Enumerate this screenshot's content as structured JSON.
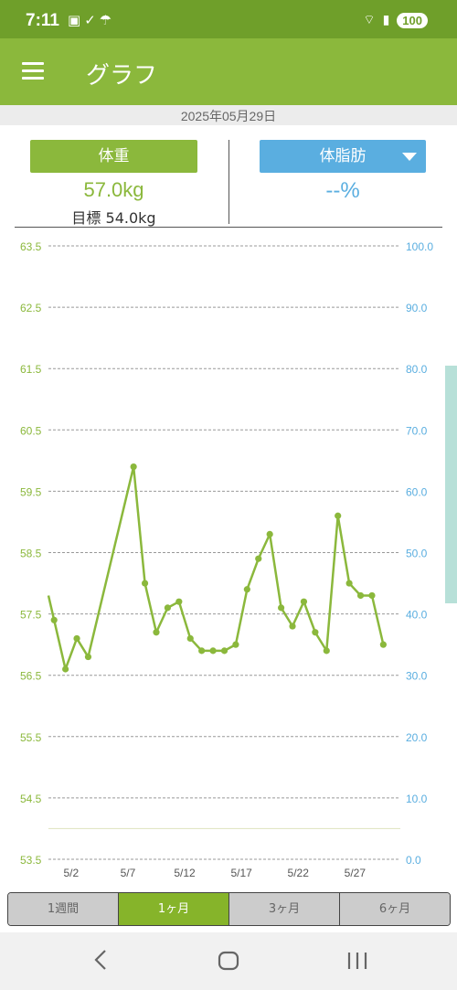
{
  "status_bar": {
    "time": "7:11",
    "icons": [
      "screenshot-icon",
      "alarm-check-icon",
      "weather-icon"
    ],
    "battery": "100"
  },
  "app_bar": {
    "title": "グラフ"
  },
  "date": "2025年05月29日",
  "summary": {
    "weight_button": "体重",
    "weight_value": "57.0kg",
    "target": "目標 54.0kg",
    "fat_button": "体脂肪",
    "fat_value": "--%"
  },
  "colors": {
    "primary": "#8bb83c",
    "status": "#6f9f2a",
    "fat": "#5aaee0"
  },
  "chart_data": {
    "type": "line",
    "x_tick_labels": [
      "5/2",
      "5/7",
      "5/12",
      "5/17",
      "5/22",
      "5/27"
    ],
    "x_tick_days": [
      2,
      7,
      12,
      17,
      22,
      27
    ],
    "x_range_days": [
      0,
      31
    ],
    "left_ticks": [
      "63.5",
      "62.5",
      "61.5",
      "60.5",
      "59.5",
      "58.5",
      "57.5",
      "56.5",
      "55.5",
      "54.5",
      "53.5"
    ],
    "right_ticks": [
      "100.0",
      "90.0",
      "80.0",
      "70.0",
      "60.0",
      "50.0",
      "40.0",
      "30.0",
      "20.0",
      "10.0",
      "0.0"
    ],
    "ylim_left": [
      53.5,
      63.5
    ],
    "ylim_right": [
      0,
      100
    ],
    "target_line": 54.0,
    "series": [
      {
        "values": [
          [
            0,
            57.8
          ],
          [
            0.5,
            57.4
          ],
          [
            1.5,
            56.6
          ],
          [
            2.5,
            57.1
          ],
          [
            3.5,
            56.8
          ],
          [
            7.5,
            59.9
          ],
          [
            8.5,
            58.0
          ],
          [
            9.5,
            57.2
          ],
          [
            10.5,
            57.6
          ],
          [
            11.5,
            57.7
          ],
          [
            12.5,
            57.1
          ],
          [
            13.5,
            56.9
          ],
          [
            14.5,
            56.9
          ],
          [
            15.5,
            56.9
          ],
          [
            16.5,
            57.0
          ],
          [
            17.5,
            57.9
          ],
          [
            18.5,
            58.4
          ],
          [
            19.5,
            58.8
          ],
          [
            20.5,
            57.6
          ],
          [
            21.5,
            57.3
          ],
          [
            22.5,
            57.7
          ],
          [
            23.5,
            57.2
          ],
          [
            24.5,
            56.9
          ],
          [
            25.5,
            59.1
          ],
          [
            26.5,
            58.0
          ],
          [
            27.5,
            57.8
          ],
          [
            28.5,
            57.8
          ],
          [
            29.5,
            57.0
          ]
        ]
      }
    ],
    "grid": true
  },
  "period_tabs": [
    {
      "label": "1週間",
      "active": false
    },
    {
      "label": "1ヶ月",
      "active": true
    },
    {
      "label": "3ヶ月",
      "active": false
    },
    {
      "label": "6ヶ月",
      "active": false
    }
  ]
}
